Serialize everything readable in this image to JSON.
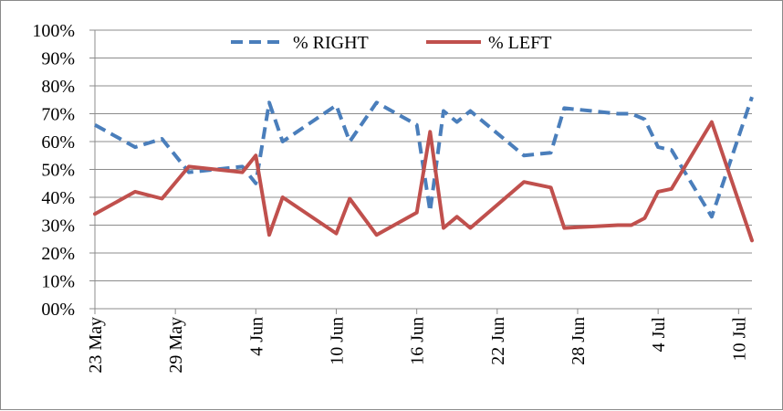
{
  "chart_data": {
    "type": "line",
    "title": "",
    "xlabel": "",
    "ylabel": "",
    "x_tick_labels": [
      "23 May",
      "29 May",
      "4 Jun",
      "10 Jun",
      "16 Jun",
      "22 Jun",
      "28 Jun",
      "4 Jul",
      "10 Jul"
    ],
    "y_tick_labels": [
      "00%",
      "10%",
      "20%",
      "30%",
      "40%",
      "50%",
      "60%",
      "70%",
      "80%",
      "90%",
      "100%"
    ],
    "ylim": [
      0,
      100
    ],
    "xlim": [
      "2013-05-23",
      "2013-07-11"
    ],
    "grid": "horizontal",
    "legend_position": "top-center",
    "series": [
      {
        "name": "% RIGHT",
        "color": "#4a7ebb",
        "line_style": "dashed",
        "points": [
          [
            "2013-05-23",
            66
          ],
          [
            "2013-05-26",
            58
          ],
          [
            "2013-05-28",
            61
          ],
          [
            "2013-05-30",
            49
          ],
          [
            "2013-06-03",
            51
          ],
          [
            "2013-06-04",
            45
          ],
          [
            "2013-06-05",
            74
          ],
          [
            "2013-06-06",
            60
          ],
          [
            "2013-06-10",
            73
          ],
          [
            "2013-06-11",
            60
          ],
          [
            "2013-06-13",
            74
          ],
          [
            "2013-06-16",
            66
          ],
          [
            "2013-06-17",
            35
          ],
          [
            "2013-06-18",
            71
          ],
          [
            "2013-06-19",
            67
          ],
          [
            "2013-06-20",
            71
          ],
          [
            "2013-06-24",
            55
          ],
          [
            "2013-06-26",
            56
          ],
          [
            "2013-06-27",
            72
          ],
          [
            "2013-07-01",
            70
          ],
          [
            "2013-07-02",
            70
          ],
          [
            "2013-07-03",
            68
          ],
          [
            "2013-07-04",
            58
          ],
          [
            "2013-07-05",
            57
          ],
          [
            "2013-07-08",
            33
          ],
          [
            "2013-07-11",
            76
          ]
        ]
      },
      {
        "name": "% LEFT",
        "color": "#c0504d",
        "line_style": "solid",
        "points": [
          [
            "2013-05-23",
            34
          ],
          [
            "2013-05-26",
            42
          ],
          [
            "2013-05-28",
            39.5
          ],
          [
            "2013-05-30",
            51
          ],
          [
            "2013-06-03",
            49
          ],
          [
            "2013-06-04",
            55
          ],
          [
            "2013-06-05",
            26.5
          ],
          [
            "2013-06-06",
            40
          ],
          [
            "2013-06-10",
            27
          ],
          [
            "2013-06-11",
            39.5
          ],
          [
            "2013-06-13",
            26.5
          ],
          [
            "2013-06-16",
            34.5
          ],
          [
            "2013-06-17",
            63.5
          ],
          [
            "2013-06-18",
            29
          ],
          [
            "2013-06-19",
            33
          ],
          [
            "2013-06-20",
            29
          ],
          [
            "2013-06-24",
            45.5
          ],
          [
            "2013-06-26",
            43.5
          ],
          [
            "2013-06-27",
            29
          ],
          [
            "2013-07-01",
            30
          ],
          [
            "2013-07-02",
            30
          ],
          [
            "2013-07-03",
            32.5
          ],
          [
            "2013-07-04",
            42
          ],
          [
            "2013-07-05",
            43
          ],
          [
            "2013-07-08",
            67
          ],
          [
            "2013-07-11",
            24.5
          ]
        ]
      }
    ]
  }
}
